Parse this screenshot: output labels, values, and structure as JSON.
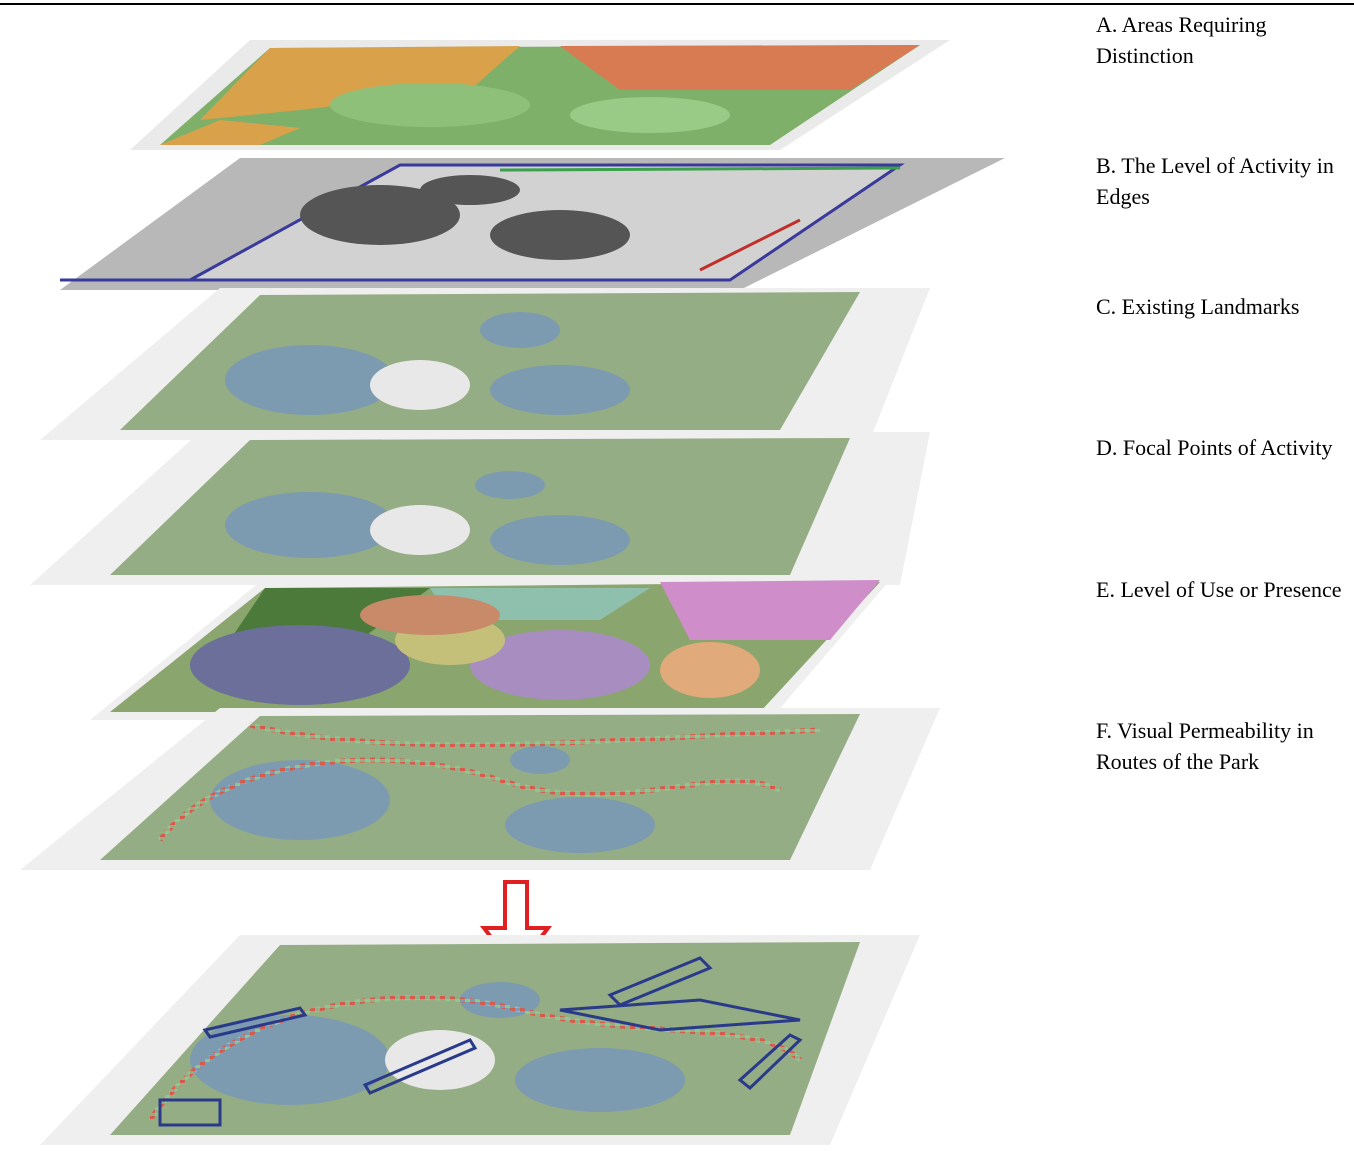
{
  "layers": [
    {
      "label": "A. Areas Requiring Distinction"
    },
    {
      "label": "B. The Level of Activity in Edges"
    },
    {
      "label": "C. Existing Landmarks"
    },
    {
      "label": "D. Focal Points of Activity"
    },
    {
      "label": "E. Level of Use or Presence"
    },
    {
      "label": "F. Visual Permeability in Routes of the Park"
    }
  ]
}
